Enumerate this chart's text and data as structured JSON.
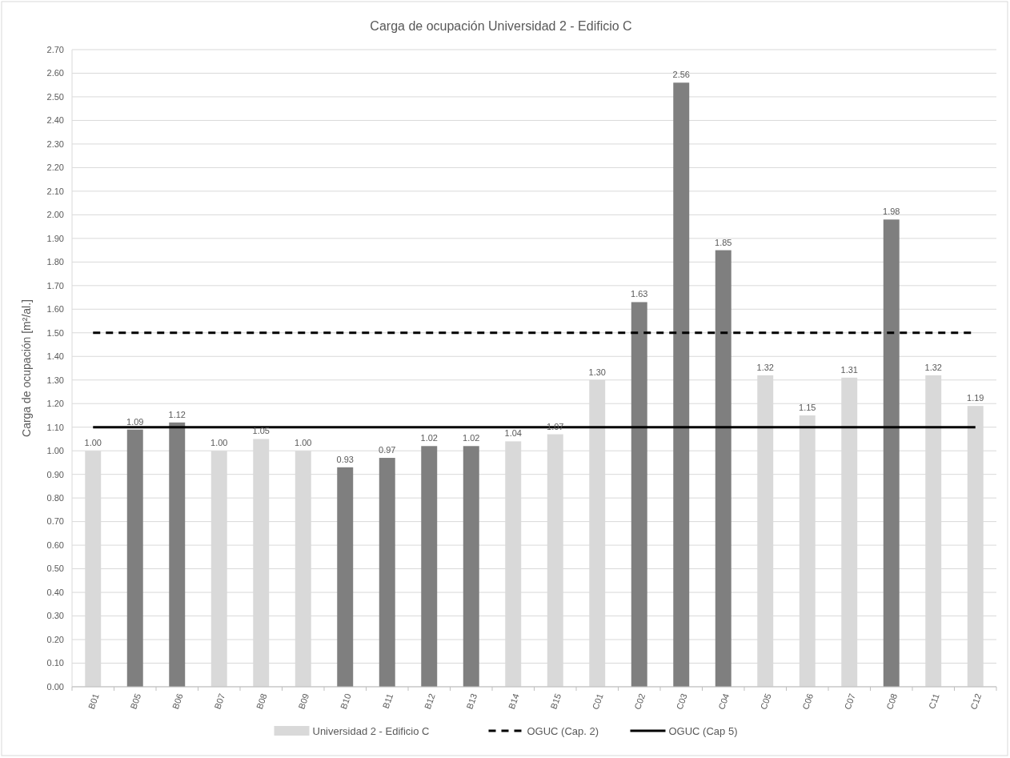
{
  "chart_data": {
    "type": "bar",
    "title": "Carga de ocupación Universidad 2 - Edificio C",
    "ylabel": "Carga de ocupación [m²/al.]",
    "categories": [
      "B01",
      "B05",
      "B06",
      "B07",
      "B08",
      "B09",
      "B10",
      "B11",
      "B12",
      "B13",
      "B14",
      "B15",
      "C01",
      "C02",
      "C03",
      "C04",
      "C05",
      "C06",
      "C07",
      "C08",
      "C11",
      "C12"
    ],
    "series": [
      {
        "name": "Universidad 2 - Edificio C",
        "color": "#d9d9d9",
        "colors": [
          "#d9d9d9",
          "#7f7f7f",
          "#7f7f7f",
          "#d9d9d9",
          "#d9d9d9",
          "#d9d9d9",
          "#7f7f7f",
          "#7f7f7f",
          "#7f7f7f",
          "#7f7f7f",
          "#d9d9d9",
          "#d9d9d9",
          "#d9d9d9",
          "#7f7f7f",
          "#7f7f7f",
          "#7f7f7f",
          "#d9d9d9",
          "#d9d9d9",
          "#d9d9d9",
          "#7f7f7f",
          "#d9d9d9",
          "#d9d9d9"
        ],
        "values": [
          1.0,
          1.09,
          1.12,
          1.0,
          1.05,
          1.0,
          0.93,
          0.97,
          1.02,
          1.02,
          1.04,
          1.07,
          1.3,
          1.63,
          2.56,
          1.85,
          1.32,
          1.15,
          1.31,
          1.98,
          1.32,
          1.19
        ],
        "value_labels": [
          "1.00",
          "1.09",
          "1.12",
          "1.00",
          "1.05",
          "1.00",
          "0.93",
          "0.97",
          "1.02",
          "1.02",
          "1.04",
          "1.07",
          "1.30",
          "1.63",
          "2.56",
          "1.85",
          "1.32",
          "1.15",
          "1.31",
          "1.98",
          "1.32",
          "1.19"
        ]
      }
    ],
    "ylim": [
      0,
      2.7
    ],
    "yticks": [
      {
        "value": 0,
        "label": "0.00"
      },
      {
        "value": 0.1,
        "label": "0.10"
      },
      {
        "value": 0.2,
        "label": "0.20"
      },
      {
        "value": 0.3,
        "label": "0.30"
      },
      {
        "value": 0.4,
        "label": "0.40"
      },
      {
        "value": 0.5,
        "label": "0.50"
      },
      {
        "value": 0.6,
        "label": "0.60"
      },
      {
        "value": 0.7,
        "label": "0.70"
      },
      {
        "value": 0.8,
        "label": "0.80"
      },
      {
        "value": 0.9,
        "label": "0.90"
      },
      {
        "value": 1.0,
        "label": "1.00"
      },
      {
        "value": 1.1,
        "label": "1.10"
      },
      {
        "value": 1.2,
        "label": "1.20"
      },
      {
        "value": 1.3,
        "label": "1.30"
      },
      {
        "value": 1.4,
        "label": "1.40"
      },
      {
        "value": 1.5,
        "label": "1.50"
      },
      {
        "value": 1.6,
        "label": "1.60"
      },
      {
        "value": 1.7,
        "label": "1.70"
      },
      {
        "value": 1.8,
        "label": "1.80"
      },
      {
        "value": 1.9,
        "label": "1.90"
      },
      {
        "value": 2.0,
        "label": "2.00"
      },
      {
        "value": 2.1,
        "label": "2.10"
      },
      {
        "value": 2.2,
        "label": "2.20"
      },
      {
        "value": 2.3,
        "label": "2.30"
      },
      {
        "value": 2.4,
        "label": "2.40"
      },
      {
        "value": 2.5,
        "label": "2.50"
      },
      {
        "value": 2.6,
        "label": "2.60"
      },
      {
        "value": 2.7,
        "label": "2.70"
      }
    ],
    "ref_lines": [
      {
        "axis": "y",
        "value": 1.5,
        "label": "OGUC (Cap. 2)",
        "color": "#000000",
        "line_style": "dashed"
      },
      {
        "axis": "y",
        "value": 1.1,
        "label": "OGUC (Cap 5)",
        "color": "#000000",
        "line_style": "solid"
      }
    ],
    "grid": "y",
    "legend": "bottom"
  }
}
